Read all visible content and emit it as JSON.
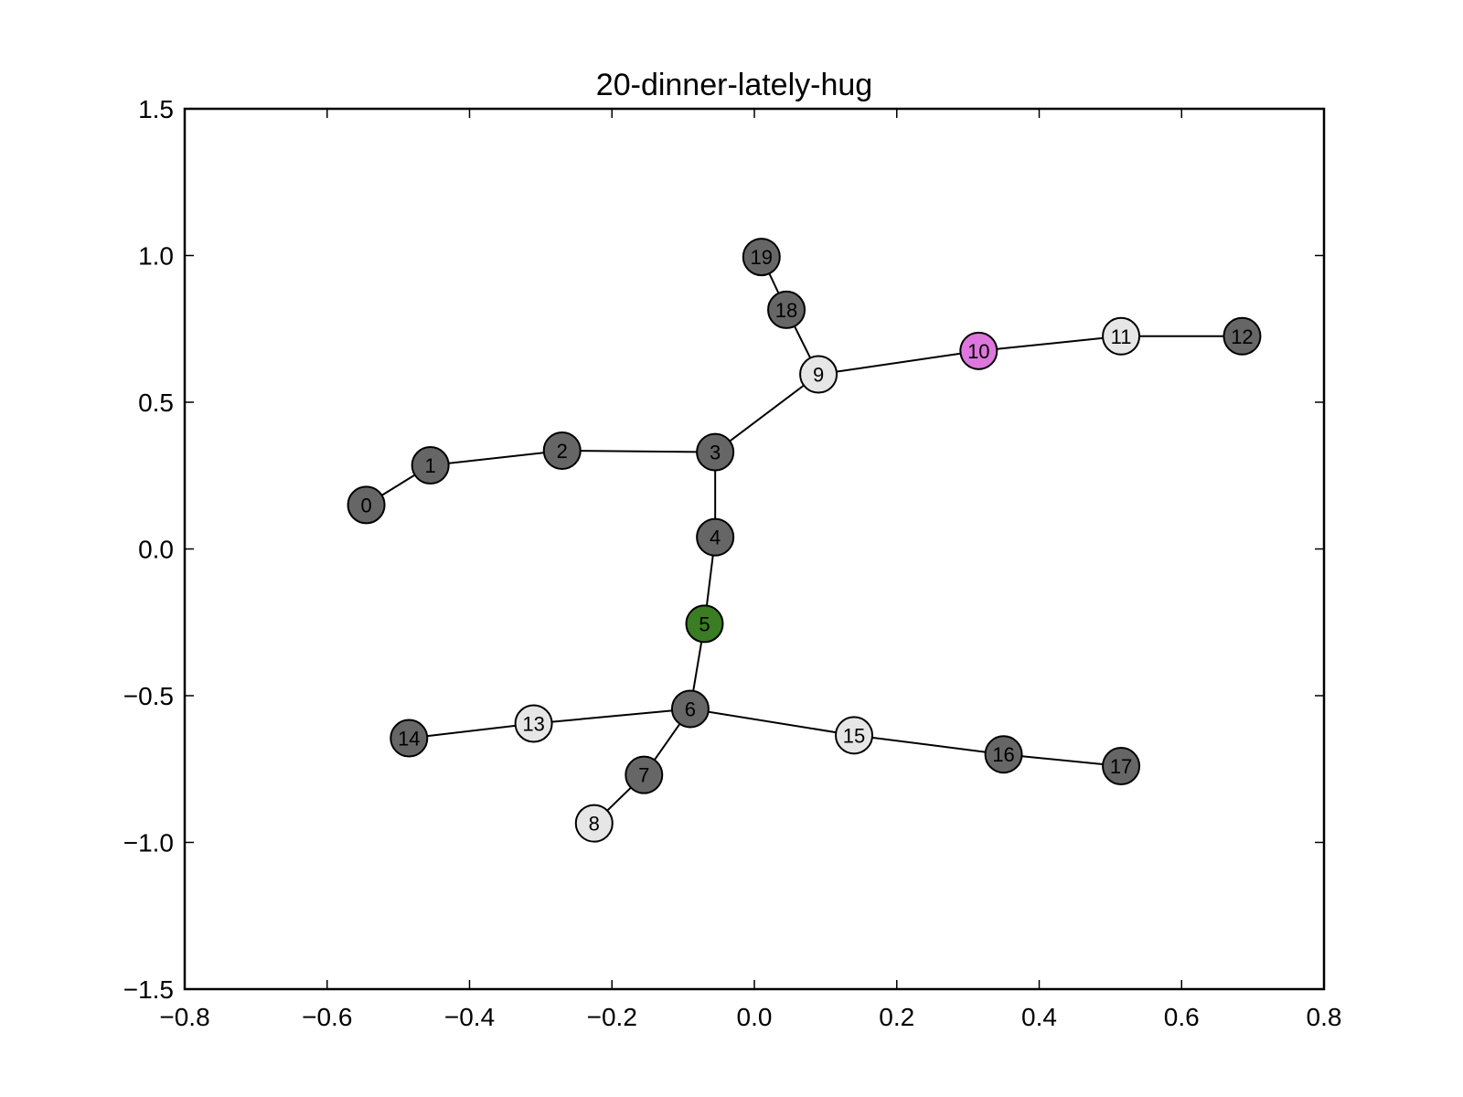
{
  "chart_data": {
    "type": "scatter",
    "title": "20-dinner-lately-hug",
    "xlabel": "",
    "ylabel": "",
    "xlim": [
      -0.8,
      0.8
    ],
    "ylim": [
      -1.5,
      1.5
    ],
    "x_ticks": [
      -0.8,
      -0.6,
      -0.4,
      -0.2,
      0.0,
      0.2,
      0.4,
      0.6,
      0.8
    ],
    "x_tick_labels": [
      "−0.8",
      "−0.6",
      "−0.4",
      "−0.2",
      "0.0",
      "0.2",
      "0.4",
      "0.6",
      "0.8"
    ],
    "y_ticks": [
      1.5,
      1.0,
      0.5,
      0.0,
      -0.5,
      -1.0,
      -1.5
    ],
    "y_tick_labels": [
      "1.5",
      "1.0",
      "0.5",
      "0.0",
      "−0.5",
      "−1.0",
      "−1.5"
    ],
    "grid": false,
    "colors": {
      "dark": "#666666",
      "light": "#e6e6e6",
      "green": "#3a7d22",
      "purple": "#dd77dd"
    },
    "nodes": [
      {
        "id": "0",
        "x": -0.545,
        "y": 0.15,
        "color": "dark"
      },
      {
        "id": "1",
        "x": -0.455,
        "y": 0.285,
        "color": "dark"
      },
      {
        "id": "2",
        "x": -0.27,
        "y": 0.335,
        "color": "dark"
      },
      {
        "id": "3",
        "x": -0.055,
        "y": 0.33,
        "color": "dark"
      },
      {
        "id": "4",
        "x": -0.055,
        "y": 0.04,
        "color": "dark"
      },
      {
        "id": "5",
        "x": -0.07,
        "y": -0.255,
        "color": "green"
      },
      {
        "id": "6",
        "x": -0.09,
        "y": -0.545,
        "color": "dark"
      },
      {
        "id": "7",
        "x": -0.155,
        "y": -0.77,
        "color": "dark"
      },
      {
        "id": "8",
        "x": -0.225,
        "y": -0.935,
        "color": "light"
      },
      {
        "id": "9",
        "x": 0.09,
        "y": 0.595,
        "color": "light"
      },
      {
        "id": "10",
        "x": 0.315,
        "y": 0.675,
        "color": "purple"
      },
      {
        "id": "11",
        "x": 0.515,
        "y": 0.725,
        "color": "light"
      },
      {
        "id": "12",
        "x": 0.685,
        "y": 0.725,
        "color": "dark"
      },
      {
        "id": "13",
        "x": -0.31,
        "y": -0.595,
        "color": "light"
      },
      {
        "id": "14",
        "x": -0.485,
        "y": -0.645,
        "color": "dark"
      },
      {
        "id": "15",
        "x": 0.14,
        "y": -0.635,
        "color": "light"
      },
      {
        "id": "16",
        "x": 0.35,
        "y": -0.7,
        "color": "dark"
      },
      {
        "id": "17",
        "x": 0.515,
        "y": -0.74,
        "color": "dark"
      },
      {
        "id": "18",
        "x": 0.045,
        "y": 0.815,
        "color": "dark"
      },
      {
        "id": "19",
        "x": 0.01,
        "y": 0.995,
        "color": "dark"
      }
    ],
    "edges": [
      [
        "0",
        "1"
      ],
      [
        "1",
        "2"
      ],
      [
        "2",
        "3"
      ],
      [
        "3",
        "4"
      ],
      [
        "4",
        "5"
      ],
      [
        "5",
        "6"
      ],
      [
        "6",
        "7"
      ],
      [
        "7",
        "8"
      ],
      [
        "3",
        "9"
      ],
      [
        "9",
        "10"
      ],
      [
        "10",
        "11"
      ],
      [
        "11",
        "12"
      ],
      [
        "6",
        "13"
      ],
      [
        "13",
        "14"
      ],
      [
        "6",
        "15"
      ],
      [
        "15",
        "16"
      ],
      [
        "16",
        "17"
      ],
      [
        "9",
        "18"
      ],
      [
        "18",
        "19"
      ]
    ]
  }
}
